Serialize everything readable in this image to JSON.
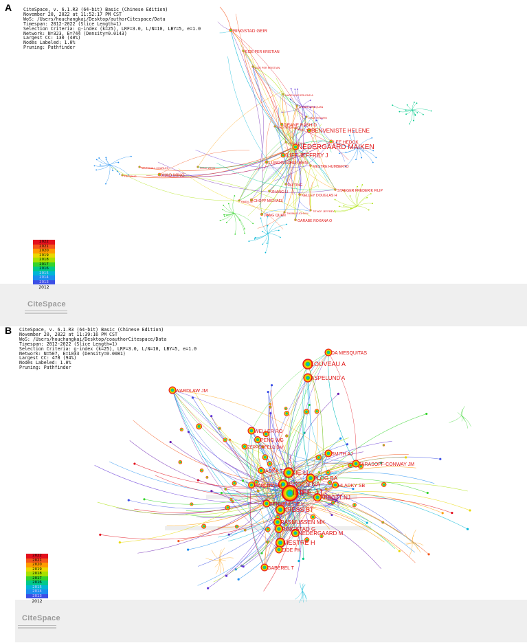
{
  "legend_colors": [
    "#e3101d",
    "#f4561b",
    "#ff9b00",
    "#e9d800",
    "#a8e000",
    "#35d42c",
    "#00c98a",
    "#00b6d6",
    "#1c8cf0",
    "#3c4fe6",
    "#5d2fd6",
    "#6b1fb0"
  ],
  "panelA": {
    "letter": "A",
    "meta": [
      "CiteSpace, v. 6.1.R3 (64-bit) Basic (Chinese Edition)",
      "November 20, 2022 at 11:52:17 PM CST",
      "WoS: /Users/houchangkai/Desktop/authorCitespace/Data",
      "Timespan: 2012-2022 (Slice Length=1)",
      "Selection Criteria: g-index (k=25), LRF=3.0, L/N=10, LBY=5, e=1.0",
      "Network: N=323, E=744 (Density=0.0143)",
      "Largest CC: 130 (40%)",
      "Nodes Labeled: 1.0%",
      "Pruning: Pathfinder"
    ],
    "legend_years": [
      "2022",
      "2021",
      "2020",
      "2019",
      "2018",
      "2017",
      "2016",
      "2015",
      "2014",
      "2013"
    ],
    "legend_last": "2012",
    "brand": "CiteSpace",
    "nodes": [
      {
        "label": "RINGSTAD GEIR",
        "size": 9
      },
      {
        "label": "EIDE PER KRISTIAN",
        "size": 6
      },
      {
        "label": "EIDE PER KRISTIAN",
        "size": 3
      },
      {
        "label": "NAGELHUS ERLEND A",
        "size": 5
      },
      {
        "label": "ZHANG MINGQUAN",
        "size": 3
      },
      {
        "label": "DING FENGFEI",
        "size": 3
      },
      {
        "label": "DEANE RASHID",
        "size": 8
      },
      {
        "label": "KANG HONGYI",
        "size": 3
      },
      {
        "label": "BENVENISTE HELENE",
        "size": 11
      },
      {
        "label": "LEE HEDOK",
        "size": 9
      },
      {
        "label": "NEDERGAARD MAIKEN",
        "size": 16
      },
      {
        "label": "ILIFF JEFFREY J",
        "size": 12
      },
      {
        "label": "LUNDGAARD IBEN",
        "size": 8
      },
      {
        "label": "MESTRE HUMBERTO",
        "size": 6
      },
      {
        "label": "DU TING",
        "size": 6
      },
      {
        "label": "ZHANG LI",
        "size": 6
      },
      {
        "label": "CHOPP MICHAEL",
        "size": 7
      },
      {
        "label": "KELLEY DOUGLAS H",
        "size": 6
      },
      {
        "label": "STAEGER FREDERIK FILIP",
        "size": 6
      },
      {
        "label": "JIANG QUAN",
        "size": 7
      },
      {
        "label": "GARABE ROXANA O",
        "size": 6
      },
      {
        "label": "THOMAS JOHN H",
        "size": 4
      },
      {
        "label": "TITHOF JEFFREY",
        "size": 4
      },
      {
        "label": "CHEN JIE",
        "size": 4
      },
      {
        "label": "XIAO MING",
        "size": 8
      },
      {
        "label": "FENG WEIXI",
        "size": 4
      },
      {
        "label": "MARSHALL CHARLES",
        "size": 4
      },
      {
        "label": "HU GANG",
        "size": 4
      },
      {
        "label": "TANG BENJAMIN A",
        "size": 3
      },
      {
        "label": "LIAO YUEHUA",
        "size": 3
      }
    ]
  },
  "panelB": {
    "letter": "B",
    "meta": [
      "CiteSpace, v. 6.1.R3 (64-bit) Basic (Chinese Edition)",
      "November 20, 2022 at 11:39:16 PM CST",
      "WoS: /Users/houchangkai/Desktop/coauthorCitespace/Data",
      "Timespan: 2012-2022 (Slice Length=1)",
      "Selection Criteria: g-index (k=25), LRF=3.0, L/N=10, LBY=5, e=1.0",
      "Network: N=507, E=1033 (Density=0.0081)",
      "Largest CC: 478 (94%)",
      "Nodes Labeled: 1.0%",
      "Pruning: Pathfinder"
    ],
    "legend_years": [
      "2022",
      "2021",
      "2020",
      "2019",
      "2018",
      "2017",
      "2016",
      "2015",
      "2014",
      "2013"
    ],
    "legend_last": "2012",
    "brand": "CiteSpace",
    "nodes": [
      {
        "label": "DA MESQUITAS",
        "size": 10
      },
      {
        "label": "LOUVEAU A",
        "size": 14
      },
      {
        "label": "ASPELUND A",
        "size": 12
      },
      {
        "label": "WARDLAW JM",
        "size": 10
      },
      {
        "label": "WELLER RO",
        "size": 10
      },
      {
        "label": "PENG WG",
        "size": 9
      },
      {
        "label": "ZEPPENFELD DM",
        "size": 8
      },
      {
        "label": "SMITH AJ",
        "size": 10
      },
      {
        "label": "TARASOFF-CONWAY JM",
        "size": 10
      },
      {
        "label": "IAOKA T",
        "size": 9
      },
      {
        "label": "XIE LL",
        "size": 14
      },
      {
        "label": "PLOG BA",
        "size": 12
      },
      {
        "label": "JESSEN NA",
        "size": 13
      },
      {
        "label": "ILIFF JJ",
        "size": 22
      },
      {
        "label": "HABLITZ LM",
        "size": 9
      },
      {
        "label": "HLADKY SB",
        "size": 9
      },
      {
        "label": "ABBOTT NJ",
        "size": 11
      },
      {
        "label": "BENVENISTE H",
        "size": 10
      },
      {
        "label": "KRESS BT",
        "size": 13
      },
      {
        "label": "RASMUSSEN MK",
        "size": 11
      },
      {
        "label": "RINGSTAD G",
        "size": 11
      },
      {
        "label": "NEDERGAARD M",
        "size": 11
      },
      {
        "label": "MESTRE H",
        "size": 13
      },
      {
        "label": "EIDE PK",
        "size": 10
      },
      {
        "label": "GABEREL T",
        "size": 10
      }
    ]
  }
}
